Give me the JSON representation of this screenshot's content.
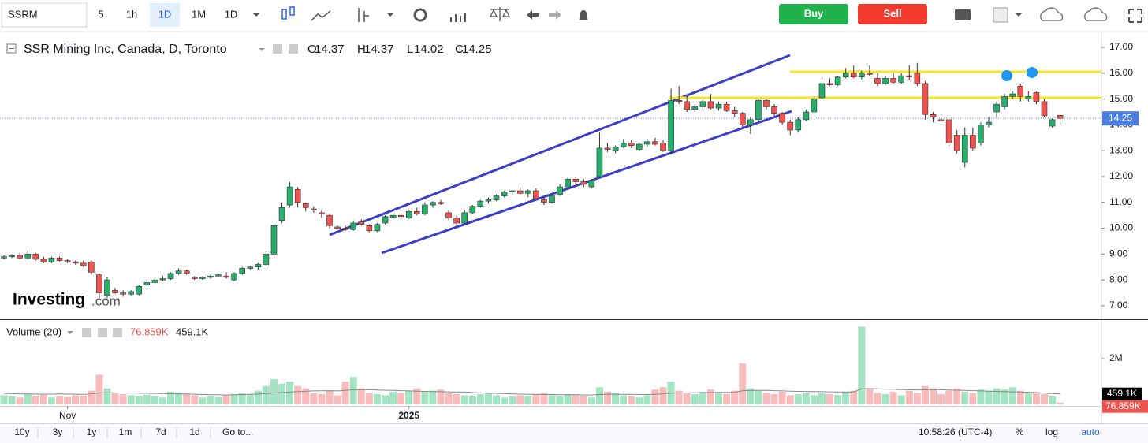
{
  "toolbar": {
    "symbol": "SSRM",
    "intervals": [
      "5",
      "1h",
      "1D",
      "1M",
      "1D"
    ],
    "buy": "Buy",
    "sell": "Sell"
  },
  "watermark": [
    "Investing",
    ".com"
  ],
  "chart_data": {
    "type": "candlestick",
    "title": "SSR Mining Inc, Canada, D, Toronto",
    "ohlc_labels": [
      "O",
      "H",
      "L",
      "C"
    ],
    "up_color": "#26ae6c",
    "down_color": "#ef5350",
    "candles": [
      [
        8.85,
        8.95,
        8.8,
        8.9
      ],
      [
        8.9,
        9.0,
        8.85,
        8.95
      ],
      [
        8.95,
        9.05,
        8.8,
        8.85
      ],
      [
        8.85,
        9.15,
        8.8,
        9.0
      ],
      [
        9.0,
        9.05,
        8.75,
        8.8
      ],
      [
        8.8,
        8.9,
        8.65,
        8.7
      ],
      [
        8.7,
        8.9,
        8.65,
        8.85
      ],
      [
        8.85,
        8.9,
        8.7,
        8.75
      ],
      [
        8.75,
        8.8,
        8.65,
        8.7
      ],
      [
        8.7,
        8.75,
        8.6,
        8.65
      ],
      [
        8.65,
        8.75,
        8.5,
        8.55
      ],
      [
        8.7,
        8.75,
        8.2,
        8.3
      ],
      [
        8.2,
        8.25,
        7.3,
        7.5
      ],
      [
        7.4,
        8.1,
        7.3,
        8.0
      ],
      [
        7.6,
        7.7,
        7.45,
        7.5
      ],
      [
        7.5,
        7.6,
        7.35,
        7.45
      ],
      [
        7.45,
        7.6,
        7.4,
        7.55
      ],
      [
        7.45,
        7.8,
        7.4,
        7.75
      ],
      [
        7.8,
        8.0,
        7.75,
        7.9
      ],
      [
        7.9,
        8.1,
        7.85,
        8.0
      ],
      [
        8.0,
        8.15,
        7.95,
        8.05
      ],
      [
        8.05,
        8.3,
        8.0,
        8.25
      ],
      [
        8.25,
        8.45,
        8.2,
        8.35
      ],
      [
        8.35,
        8.4,
        8.2,
        8.25
      ],
      [
        8.1,
        8.15,
        8.0,
        8.05
      ],
      [
        8.05,
        8.15,
        8.0,
        8.1
      ],
      [
        8.1,
        8.2,
        8.05,
        8.15
      ],
      [
        8.15,
        8.25,
        8.1,
        8.2
      ],
      [
        8.15,
        8.3,
        8.05,
        8.1
      ],
      [
        8.0,
        8.3,
        7.95,
        8.25
      ],
      [
        8.25,
        8.5,
        8.2,
        8.45
      ],
      [
        8.45,
        8.55,
        8.4,
        8.5
      ],
      [
        8.5,
        8.65,
        8.4,
        8.6
      ],
      [
        8.6,
        9.1,
        8.55,
        9.0
      ],
      [
        9.0,
        10.2,
        8.95,
        10.1
      ],
      [
        10.3,
        11.0,
        10.2,
        10.8
      ],
      [
        10.9,
        11.8,
        10.8,
        11.6
      ],
      [
        11.5,
        11.6,
        10.8,
        11.0
      ],
      [
        10.95,
        11.0,
        10.65,
        10.8
      ],
      [
        10.75,
        10.85,
        10.6,
        10.7
      ],
      [
        10.6,
        10.7,
        10.4,
        10.55
      ],
      [
        10.5,
        10.55,
        10.0,
        10.1
      ],
      [
        10.05,
        10.1,
        9.95,
        10.0
      ],
      [
        10.0,
        10.1,
        9.9,
        9.95
      ],
      [
        9.95,
        10.3,
        9.9,
        10.2
      ],
      [
        10.25,
        10.35,
        10.1,
        10.15
      ],
      [
        10.1,
        10.15,
        9.85,
        9.9
      ],
      [
        9.9,
        10.2,
        9.85,
        10.15
      ],
      [
        10.2,
        10.5,
        10.15,
        10.45
      ],
      [
        10.4,
        10.6,
        10.3,
        10.5
      ],
      [
        10.5,
        10.6,
        10.35,
        10.45
      ],
      [
        10.4,
        10.7,
        10.35,
        10.65
      ],
      [
        10.65,
        10.8,
        10.5,
        10.55
      ],
      [
        10.55,
        11.0,
        10.5,
        10.9
      ],
      [
        10.9,
        11.05,
        10.8,
        11.0
      ],
      [
        11.0,
        11.1,
        10.9,
        10.95
      ],
      [
        10.6,
        10.7,
        10.3,
        10.4
      ],
      [
        10.4,
        10.5,
        10.1,
        10.2
      ],
      [
        10.2,
        10.7,
        10.15,
        10.6
      ],
      [
        10.6,
        10.9,
        10.55,
        10.85
      ],
      [
        10.85,
        11.1,
        10.8,
        11.05
      ],
      [
        11.05,
        11.2,
        10.95,
        11.1
      ],
      [
        11.1,
        11.3,
        11.05,
        11.25
      ],
      [
        11.25,
        11.45,
        11.2,
        11.4
      ],
      [
        11.4,
        11.5,
        11.3,
        11.45
      ],
      [
        11.45,
        11.6,
        11.3,
        11.35
      ],
      [
        11.35,
        11.5,
        11.2,
        11.45
      ],
      [
        11.45,
        11.55,
        11.1,
        11.15
      ],
      [
        11.1,
        11.2,
        10.9,
        11.0
      ],
      [
        11.0,
        11.3,
        10.95,
        11.25
      ],
      [
        11.3,
        11.7,
        11.25,
        11.6
      ],
      [
        11.6,
        12.0,
        11.55,
        11.9
      ],
      [
        11.9,
        12.0,
        11.7,
        11.8
      ],
      [
        11.8,
        11.9,
        11.6,
        11.7
      ],
      [
        11.6,
        11.9,
        11.55,
        11.85
      ],
      [
        12.0,
        13.7,
        11.95,
        13.1
      ],
      [
        13.1,
        13.3,
        12.95,
        13.05
      ],
      [
        13.0,
        13.2,
        12.9,
        13.15
      ],
      [
        13.15,
        13.45,
        13.1,
        13.3
      ],
      [
        13.3,
        13.4,
        13.1,
        13.2
      ],
      [
        13.05,
        13.3,
        13.0,
        13.25
      ],
      [
        13.25,
        13.45,
        13.15,
        13.35
      ],
      [
        13.35,
        13.5,
        13.2,
        13.25
      ],
      [
        13.3,
        13.4,
        12.95,
        13.0
      ],
      [
        13.0,
        15.4,
        12.85,
        14.95
      ],
      [
        14.95,
        15.5,
        14.8,
        14.9
      ],
      [
        14.9,
        15.1,
        14.5,
        14.6
      ],
      [
        14.6,
        14.8,
        14.5,
        14.7
      ],
      [
        14.7,
        14.95,
        14.6,
        14.9
      ],
      [
        14.9,
        15.2,
        14.6,
        14.65
      ],
      [
        14.65,
        14.9,
        14.55,
        14.8
      ],
      [
        14.8,
        14.9,
        14.5,
        14.55
      ],
      [
        14.55,
        14.7,
        14.3,
        14.45
      ],
      [
        14.45,
        14.5,
        13.9,
        14.0
      ],
      [
        14.0,
        14.3,
        13.65,
        14.2
      ],
      [
        14.2,
        15.0,
        14.1,
        14.95
      ],
      [
        14.95,
        15.0,
        14.6,
        14.7
      ],
      [
        14.7,
        14.8,
        14.35,
        14.45
      ],
      [
        14.45,
        14.5,
        14.0,
        14.1
      ],
      [
        14.1,
        14.2,
        13.6,
        13.8
      ],
      [
        13.8,
        14.3,
        13.7,
        14.2
      ],
      [
        14.2,
        14.6,
        14.15,
        14.5
      ],
      [
        14.5,
        15.1,
        14.4,
        15.0
      ],
      [
        15.05,
        15.7,
        15.0,
        15.6
      ],
      [
        15.6,
        15.8,
        15.5,
        15.55
      ],
      [
        15.55,
        15.9,
        15.5,
        15.85
      ],
      [
        15.85,
        16.2,
        15.8,
        16.0
      ],
      [
        16.0,
        16.3,
        15.8,
        15.85
      ],
      [
        15.85,
        16.1,
        15.75,
        16.0
      ],
      [
        16.0,
        16.3,
        15.9,
        15.95
      ],
      [
        15.8,
        16.0,
        15.5,
        15.6
      ],
      [
        15.6,
        15.9,
        15.55,
        15.8
      ],
      [
        15.8,
        16.0,
        15.6,
        15.65
      ],
      [
        15.65,
        16.0,
        15.6,
        15.9
      ],
      [
        15.9,
        16.3,
        15.75,
        15.85
      ],
      [
        16.0,
        16.4,
        15.5,
        15.6
      ],
      [
        15.6,
        15.7,
        14.2,
        14.4
      ],
      [
        14.4,
        14.5,
        14.1,
        14.3
      ],
      [
        14.2,
        14.4,
        14.0,
        14.15
      ],
      [
        14.2,
        14.3,
        13.2,
        13.3
      ],
      [
        13.6,
        13.8,
        12.9,
        13.0
      ],
      [
        12.55,
        13.9,
        12.35,
        13.6
      ],
      [
        13.6,
        13.9,
        13.0,
        13.1
      ],
      [
        13.3,
        14.1,
        13.2,
        14.0
      ],
      [
        14.0,
        14.3,
        13.9,
        14.1
      ],
      [
        14.5,
        14.9,
        14.3,
        14.8
      ],
      [
        14.7,
        15.2,
        14.6,
        15.1
      ],
      [
        15.1,
        15.3,
        15.0,
        15.2
      ],
      [
        15.5,
        15.6,
        14.9,
        15.1
      ],
      [
        15.0,
        15.3,
        14.9,
        15.1
      ],
      [
        15.25,
        15.3,
        14.8,
        14.9
      ],
      [
        14.9,
        15.0,
        14.3,
        14.35
      ],
      [
        13.95,
        14.25,
        13.9,
        14.2
      ],
      [
        14.37,
        14.37,
        14.02,
        14.25
      ]
    ],
    "xlim": [
      -0.5,
      138.2
    ],
    "xticks": [
      {
        "value": 8,
        "label": "Nov"
      },
      {
        "value": 51,
        "label": "2025"
      }
    ],
    "ylim": [
      6.48,
      17.55
    ],
    "yticks": [
      {
        "value": 7,
        "label": "7.00"
      },
      {
        "value": 8,
        "label": "8.00"
      },
      {
        "value": 9,
        "label": "9.00"
      },
      {
        "value": 10,
        "label": "10.00"
      },
      {
        "value": 11,
        "label": "11.00"
      },
      {
        "value": 12,
        "label": "12.00"
      },
      {
        "value": 13,
        "label": "13.00"
      },
      {
        "value": 14,
        "label": "14.00"
      },
      {
        "value": 15,
        "label": "15.00"
      },
      {
        "value": 16,
        "label": "16.00"
      },
      {
        "value": 17,
        "label": "17.00"
      }
    ],
    "grid": false,
    "volume": {
      "title": "Volume (20)",
      "up_color": "#a3e4c4",
      "down_color": "#f9bcbc",
      "ma_color": "#8a8a8a",
      "values": [
        400000,
        350000,
        300000,
        450000,
        380000,
        420000,
        300000,
        350000,
        320000,
        400000,
        380000,
        600000,
        1300000,
        700000,
        500000,
        450000,
        400000,
        350000,
        420000,
        380000,
        300000,
        550000,
        500000,
        450000,
        400000,
        300000,
        350000,
        320000,
        400000,
        450000,
        500000,
        420000,
        600000,
        800000,
        1100000,
        900000,
        1000000,
        800000,
        700000,
        500000,
        450000,
        600000,
        400000,
        1000000,
        1200000,
        700000,
        500000,
        450000,
        400000,
        550000,
        500000,
        600000,
        700000,
        550000,
        600000,
        650000,
        500000,
        450000,
        400000,
        350000,
        450000,
        500000,
        400000,
        300000,
        350000,
        400000,
        380000,
        450000,
        500000,
        400000,
        350000,
        450000,
        400000,
        350000,
        300000,
        750000,
        550000,
        500000,
        400000,
        350000,
        300000,
        400000,
        650000,
        750000,
        1000000,
        600000,
        500000,
        450000,
        550000,
        650000,
        500000,
        450000,
        600000,
        1800000,
        700000,
        600000,
        500000,
        450000,
        550000,
        400000,
        450000,
        500000,
        400000,
        500000,
        450000,
        400000,
        550000,
        600000,
        3400000,
        700000,
        500000,
        450000,
        550000,
        400000,
        600000,
        500000,
        800000,
        700000,
        450000,
        600000,
        700000,
        550000,
        500000,
        650000,
        600000,
        700000,
        650000,
        750000,
        600000,
        500000,
        550000,
        450000,
        350000,
        76859
      ],
      "value_label": "76.859K",
      "ma": [
        480000,
        470000,
        460000,
        455000,
        450000,
        445000,
        450000,
        455000,
        450000,
        445000,
        440000,
        460000,
        500000,
        510000,
        505000,
        500000,
        495000,
        490000,
        485000,
        480000,
        470000,
        465000,
        460000,
        455000,
        440000,
        430000,
        425000,
        420000,
        410000,
        420000,
        430000,
        440000,
        450000,
        470000,
        500000,
        520000,
        540000,
        560000,
        580000,
        590000,
        595000,
        600000,
        590000,
        610000,
        640000,
        650000,
        640000,
        630000,
        620000,
        610000,
        600000,
        590000,
        580000,
        570000,
        560000,
        555000,
        550000,
        545000,
        540000,
        520000,
        500000,
        490000,
        480000,
        470000,
        460000,
        450000,
        445000,
        440000,
        435000,
        430000,
        425000,
        420000,
        420000,
        415000,
        410000,
        430000,
        440000,
        445000,
        440000,
        435000,
        430000,
        430000,
        440000,
        460000,
        490000,
        500000,
        505000,
        510000,
        515000,
        520000,
        525000,
        520000,
        530000,
        600000,
        610000,
        615000,
        610000,
        600000,
        590000,
        580000,
        570000,
        565000,
        560000,
        555000,
        550000,
        545000,
        540000,
        545000,
        680000,
        690000,
        680000,
        670000,
        660000,
        650000,
        640000,
        630000,
        640000,
        650000,
        640000,
        630000,
        620000,
        610000,
        600000,
        590000,
        580000,
        570000,
        560000,
        550000,
        540000,
        530000,
        510000,
        490000,
        475000,
        459100
      ],
      "ma_label": "459.1K",
      "ylim": [
        0,
        3690000
      ],
      "yticks": [
        {
          "value": 2000000,
          "label": "2M"
        }
      ]
    }
  },
  "bottom_bar": {
    "ranges": [
      "10y",
      "3y",
      "1y",
      "1m",
      "7d",
      "1d"
    ],
    "goto": "Go to...",
    "time": "10:58:26 (UTC-4)",
    "options": [
      "%",
      "log",
      "auto"
    ]
  }
}
